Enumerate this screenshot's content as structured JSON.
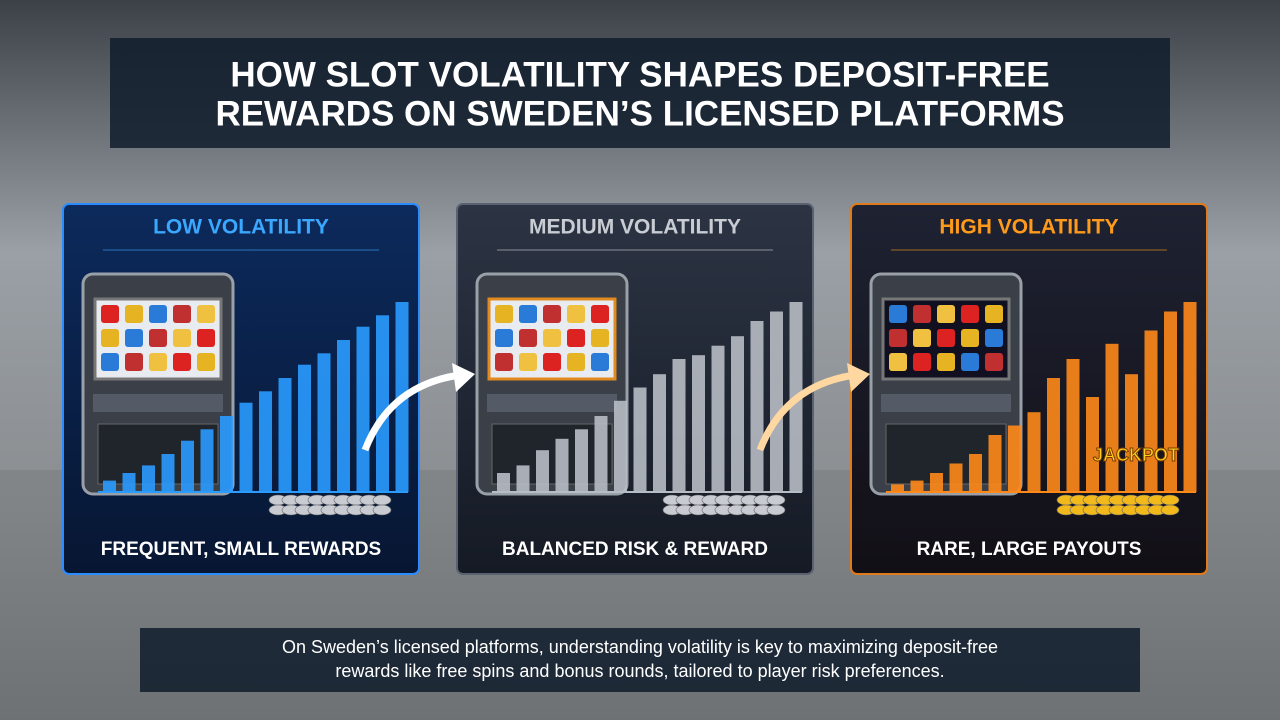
{
  "header": {
    "title_lines": [
      "HOW SLOT VOLATILITY SHAPES DEPOSIT-FREE",
      "REWARDS ON SWEDEN’S LICENSED PLATFORMS"
    ]
  },
  "panels": [
    {
      "heading": "LOW VOLATILITY",
      "caption": "FREQUENT, SMALL REWARDS"
    },
    {
      "heading": "MEDIUM VOLATILITY",
      "caption": "BALANCED RISK & REWARD"
    },
    {
      "heading": "HIGH VOLATILITY",
      "caption": "RARE, LARGE PAYOUTS",
      "badge": "JACKPOT"
    }
  ],
  "footer": {
    "lines": [
      "On Sweden’s licensed platforms, understanding volatility is key to maximizing deposit-free",
      "rewards like free spins and bonus rounds, tailored to player risk preferences."
    ]
  }
}
